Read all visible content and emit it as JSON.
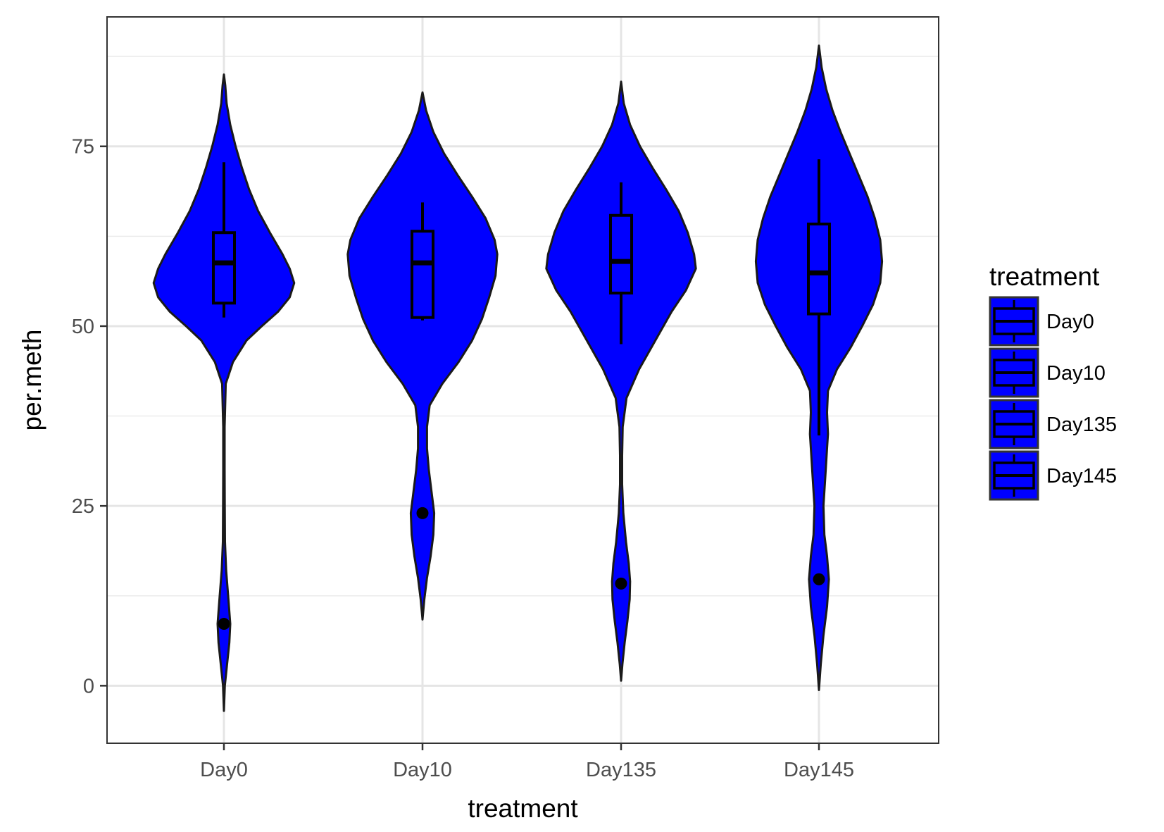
{
  "chart_data": {
    "type": "violin",
    "xlabel": "treatment",
    "ylabel": "per.meth",
    "ylim": [
      -8,
      93
    ],
    "y_ticks": [
      0,
      25,
      50,
      75
    ],
    "y_tick_labels": [
      "0",
      "25",
      "50",
      "75"
    ],
    "categories": [
      "Day0",
      "Day10",
      "Day135",
      "Day145"
    ],
    "grid": true,
    "fill_color": "#0000ff",
    "outline_color": "#1a1a1a",
    "legend": {
      "title": "treatment",
      "position": "right",
      "entries": [
        "Day0",
        "Day10",
        "Day135",
        "Day145"
      ]
    },
    "series": [
      {
        "category": "Day0",
        "boxplot": {
          "whisker_low": 51.2,
          "q1": 53.2,
          "median": 58.8,
          "q3": 63.0,
          "whisker_high": 72.8
        },
        "outliers": [
          8.6
        ],
        "density_profile": [
          [
            -3.5,
            0.0
          ],
          [
            0,
            0.01
          ],
          [
            3,
            0.035
          ],
          [
            6,
            0.06
          ],
          [
            8.6,
            0.07
          ],
          [
            12,
            0.05
          ],
          [
            16,
            0.025
          ],
          [
            20,
            0.012
          ],
          [
            25,
            0.009
          ],
          [
            30,
            0.008
          ],
          [
            36,
            0.008
          ],
          [
            42,
            0.02
          ],
          [
            45,
            0.1
          ],
          [
            48,
            0.25
          ],
          [
            50,
            0.42
          ],
          [
            52,
            0.6
          ],
          [
            54,
            0.73
          ],
          [
            56,
            0.78
          ],
          [
            58,
            0.73
          ],
          [
            60,
            0.65
          ],
          [
            63,
            0.51
          ],
          [
            66,
            0.38
          ],
          [
            69,
            0.28
          ],
          [
            72,
            0.2
          ],
          [
            75,
            0.13
          ],
          [
            78,
            0.07
          ],
          [
            81,
            0.03
          ],
          [
            83.5,
            0.015
          ],
          [
            85,
            0.0
          ]
        ]
      },
      {
        "category": "Day10",
        "boxplot": {
          "whisker_low": 50.8,
          "q1": 51.2,
          "median": 58.8,
          "q3": 63.2,
          "whisker_high": 67.2
        },
        "outliers": [
          24.0
        ],
        "density_profile": [
          [
            9.2,
            0.0
          ],
          [
            12,
            0.02
          ],
          [
            15,
            0.05
          ],
          [
            18,
            0.09
          ],
          [
            21,
            0.12
          ],
          [
            24,
            0.13
          ],
          [
            27,
            0.1
          ],
          [
            30,
            0.07
          ],
          [
            33,
            0.05
          ],
          [
            36,
            0.05
          ],
          [
            39,
            0.08
          ],
          [
            42,
            0.22
          ],
          [
            45,
            0.4
          ],
          [
            48,
            0.55
          ],
          [
            51,
            0.66
          ],
          [
            54,
            0.74
          ],
          [
            57,
            0.81
          ],
          [
            60,
            0.83
          ],
          [
            62,
            0.8
          ],
          [
            65,
            0.7
          ],
          [
            68,
            0.55
          ],
          [
            71,
            0.39
          ],
          [
            74,
            0.24
          ],
          [
            77,
            0.12
          ],
          [
            80,
            0.04
          ],
          [
            82.5,
            0.0
          ]
        ]
      },
      {
        "category": "Day135",
        "boxplot": {
          "whisker_low": 47.5,
          "q1": 54.6,
          "median": 59.0,
          "q3": 65.4,
          "whisker_high": 70.0
        },
        "outliers": [
          14.2
        ],
        "density_profile": [
          [
            0.7,
            0.0
          ],
          [
            3,
            0.015
          ],
          [
            6,
            0.04
          ],
          [
            9,
            0.07
          ],
          [
            12,
            0.095
          ],
          [
            14.5,
            0.1
          ],
          [
            17,
            0.085
          ],
          [
            20,
            0.055
          ],
          [
            24,
            0.025
          ],
          [
            28,
            0.012
          ],
          [
            32,
            0.012
          ],
          [
            36,
            0.018
          ],
          [
            40,
            0.06
          ],
          [
            44,
            0.2
          ],
          [
            48,
            0.38
          ],
          [
            52,
            0.56
          ],
          [
            55,
            0.72
          ],
          [
            58,
            0.83
          ],
          [
            60,
            0.81
          ],
          [
            63,
            0.74
          ],
          [
            66,
            0.64
          ],
          [
            69,
            0.5
          ],
          [
            72,
            0.35
          ],
          [
            75,
            0.21
          ],
          [
            78,
            0.1
          ],
          [
            81,
            0.03
          ],
          [
            84,
            0.0
          ]
        ]
      },
      {
        "category": "Day145",
        "boxplot": {
          "whisker_low": 34.8,
          "q1": 51.7,
          "median": 57.4,
          "q3": 64.2,
          "whisker_high": 73.2
        },
        "outliers": [
          14.8
        ],
        "density_profile": [
          [
            -0.6,
            0.0
          ],
          [
            3,
            0.02
          ],
          [
            7,
            0.05
          ],
          [
            11,
            0.09
          ],
          [
            14.8,
            0.11
          ],
          [
            18,
            0.09
          ],
          [
            21,
            0.06
          ],
          [
            25,
            0.05
          ],
          [
            29,
            0.07
          ],
          [
            33,
            0.09
          ],
          [
            35,
            0.1
          ],
          [
            38,
            0.09
          ],
          [
            41,
            0.1
          ],
          [
            44,
            0.2
          ],
          [
            47,
            0.35
          ],
          [
            50,
            0.48
          ],
          [
            53,
            0.6
          ],
          [
            56,
            0.68
          ],
          [
            59,
            0.7
          ],
          [
            62,
            0.68
          ],
          [
            65,
            0.62
          ],
          [
            68,
            0.54
          ],
          [
            71,
            0.44
          ],
          [
            74,
            0.34
          ],
          [
            77,
            0.24
          ],
          [
            80,
            0.15
          ],
          [
            83,
            0.08
          ],
          [
            86,
            0.03
          ],
          [
            89,
            0.0
          ]
        ]
      }
    ]
  }
}
